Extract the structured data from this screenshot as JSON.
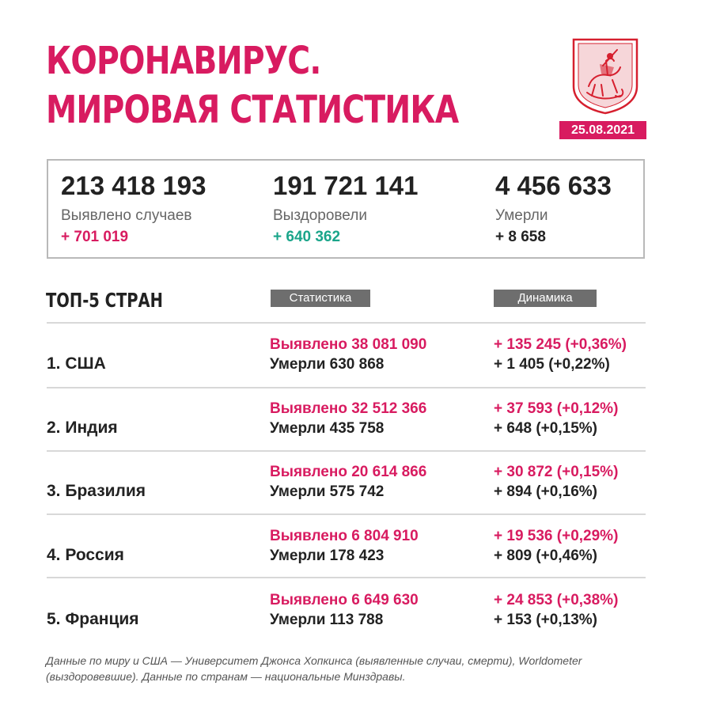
{
  "title": {
    "line1": "КОРОНАВИРУС.",
    "line2": "МИРОВАЯ СТАТИСТИКА"
  },
  "date": "25.08.2021",
  "emblem": {
    "icon": "moscow-coat-of-arms-icon",
    "colors": {
      "field": "#d6202f",
      "frame": "#d6202f"
    }
  },
  "colors": {
    "accent": "#d81b60",
    "recovered": "#1aa58a",
    "pill_bg": "#6e6e6e"
  },
  "summary": [
    {
      "value": "213 418 193",
      "label": "Выявлено случаев",
      "delta": "+ 701 019",
      "delta_color": "#d81b60"
    },
    {
      "value": "191 721 141",
      "label": "Выздоровели",
      "delta": "+ 640 362",
      "delta_color": "#1aa58a"
    },
    {
      "value": "4 456 633",
      "label": "Умерли",
      "delta": "+ 8 658",
      "delta_color": "#222222"
    }
  ],
  "table": {
    "heading": "ТОП-5 СТРАН",
    "col_stats": "Статистика",
    "col_dynamics": "Динамика",
    "rows": [
      {
        "country": "1. США",
        "cases": "Выявлено 38 081 090",
        "deaths": "Умерли 630 868",
        "dcases": "+ 135 245 (+0,36%)",
        "ddeaths": "+ 1 405 (+0,22%)"
      },
      {
        "country": "2. Индия",
        "cases": "Выявлено 32 512 366",
        "deaths": "Умерли 435 758",
        "dcases": "+ 37 593 (+0,12%)",
        "ddeaths": "+ 648 (+0,15%)"
      },
      {
        "country": "3. Бразилия",
        "cases": "Выявлено 20 614 866",
        "deaths": "Умерли 575 742",
        "dcases": "+ 30 872 (+0,15%)",
        "ddeaths": "+ 894 (+0,16%)"
      },
      {
        "country": "4. Россия",
        "cases": "Выявлено 6 804 910",
        "deaths": "Умерли 178 423",
        "dcases": "+ 19 536 (+0,29%)",
        "ddeaths": "+ 809 (+0,46%)"
      },
      {
        "country": "5. Франция",
        "cases": "Выявлено 6 649 630",
        "deaths": "Умерли 113 788",
        "dcases": "+ 24 853 (+0,38%)",
        "ddeaths": "+ 153 (+0,13%)"
      }
    ]
  },
  "footnote": "Данные по миру и США — Университет Джонса Хопкинса (выявленные случаи, смерти), Worldometer (выздоровевшие). Данные по странам — национальные Минздравы."
}
